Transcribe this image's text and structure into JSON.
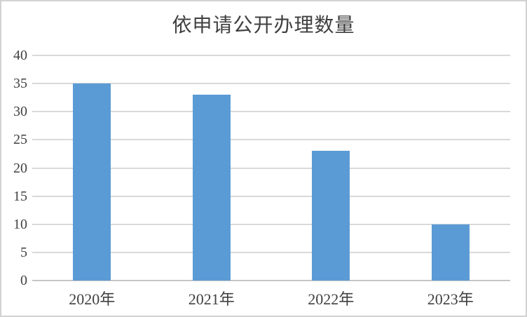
{
  "chart_data": {
    "type": "bar",
    "title": "依申请公开办理数量",
    "categories": [
      "2020年",
      "2021年",
      "2022年",
      "2023年"
    ],
    "values": [
      35,
      33,
      23,
      10
    ],
    "xlabel": "",
    "ylabel": "",
    "ylim": [
      0,
      40
    ],
    "yticks": [
      0,
      5,
      10,
      15,
      20,
      25,
      30,
      35,
      40
    ],
    "grid": "horizontal",
    "legend_position": "none",
    "bar_color": "#5B9BD5",
    "gridline_color": "#D9D9D9",
    "baseline_color": "#C6C6C6",
    "axis_label_color": "#404040",
    "title_color": "#404040",
    "background_color": "#FFFFFF",
    "frame_border_color": "#D2D2D2"
  }
}
